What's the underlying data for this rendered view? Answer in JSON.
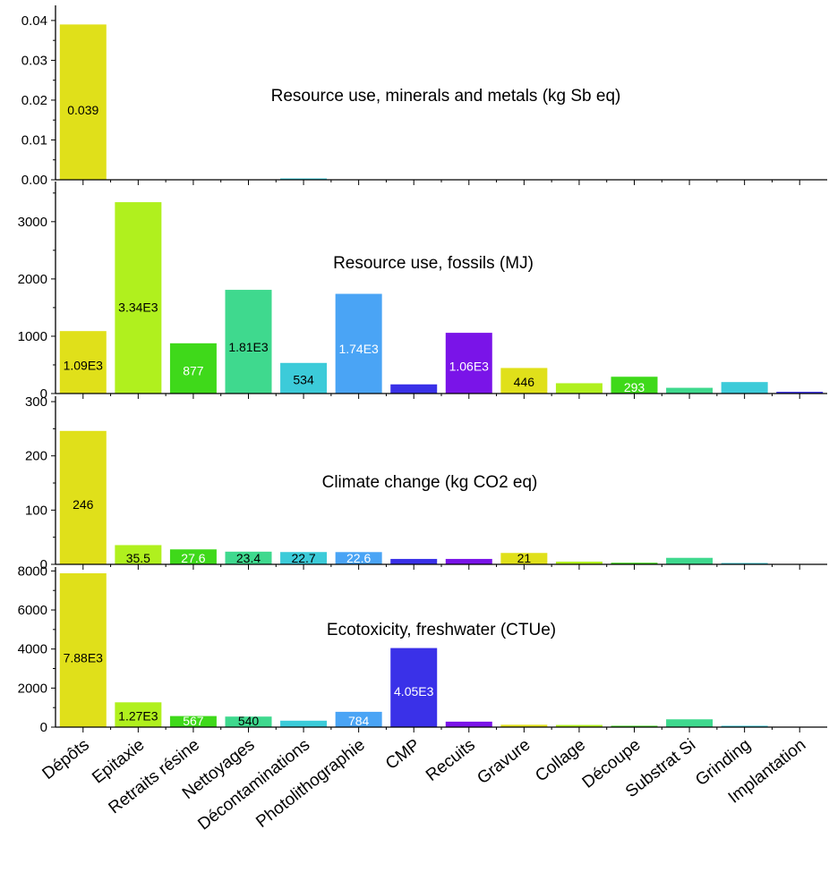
{
  "chart_data": {
    "type": "bar",
    "categories": [
      "Dépôts",
      "Epitaxie",
      "Retraits résine",
      "Nettoyages",
      "Décontaminations",
      "Photolithographie",
      "CMP",
      "Recuits",
      "Gravure",
      "Collage",
      "Découpe",
      "Substrat Si",
      "Grinding",
      "Implantation"
    ],
    "colors": [
      "#e0e01a",
      "#b0f01e",
      "#3fd91a",
      "#3fd98e",
      "#3ccbd9",
      "#4aa4f5",
      "#3a31e8",
      "#7a14e8",
      "#e0e01a",
      "#b0f01e",
      "#3fd91a",
      "#3fd98e",
      "#3ccbd9",
      "#3a31e8"
    ],
    "panels": [
      {
        "title": "Resource use, minerals and metals (kg Sb eq)",
        "ylim": [
          0,
          0.042
        ],
        "yticks": [
          "0.00",
          "0.01",
          "0.02",
          "0.03",
          "0.04"
        ],
        "ytick_values": [
          0,
          0.01,
          0.02,
          0.03,
          0.04
        ],
        "values": [
          0.039,
          0,
          0,
          0,
          0.0003,
          0,
          0,
          0,
          0,
          0,
          0,
          0,
          0,
          0
        ],
        "labels": [
          "0.039",
          "",
          "",
          "",
          "",
          "",
          "",
          "",
          "",
          "",
          "",
          "",
          "",
          ""
        ]
      },
      {
        "title": "Resource use, fossils (MJ)",
        "ylim": [
          0,
          3700
        ],
        "yticks": [
          "0",
          "1000",
          "2000",
          "3000"
        ],
        "ytick_values": [
          0,
          1000,
          2000,
          3000
        ],
        "values": [
          1090,
          3340,
          877,
          1810,
          534,
          1740,
          160,
          1060,
          446,
          180,
          293,
          100,
          200,
          30
        ],
        "labels": [
          "1.09E3",
          "3.34E3",
          "877",
          "1.81E3",
          "534",
          "1.74E3",
          "",
          "1.06E3",
          "446",
          "",
          "293",
          "",
          "",
          ""
        ]
      },
      {
        "title": "Climate change (kg CO2 eq)",
        "ylim": [
          0,
          310
        ],
        "yticks": [
          "0",
          "100",
          "200",
          "300"
        ],
        "ytick_values": [
          0,
          100,
          200,
          300
        ],
        "values": [
          246,
          35.5,
          27.6,
          23.4,
          22.7,
          22.6,
          10,
          10,
          21,
          5,
          3,
          12,
          2,
          0
        ],
        "labels": [
          "246",
          "35.5",
          "27.6",
          "23.4",
          "22.7",
          "22.6",
          "",
          "",
          "21",
          "",
          "",
          "",
          "",
          ""
        ]
      },
      {
        "title": "Ecotoxicity, freshwater (CTUe)",
        "ylim": [
          0,
          8200
        ],
        "yticks": [
          "0",
          "2000",
          "4000",
          "6000",
          "8000"
        ],
        "ytick_values": [
          0,
          2000,
          4000,
          6000,
          8000
        ],
        "values": [
          7880,
          1270,
          567,
          540,
          330,
          784,
          4050,
          280,
          120,
          110,
          60,
          400,
          60,
          0
        ],
        "labels": [
          "7.88E3",
          "1.27E3",
          "567",
          "540",
          "",
          "784",
          "4.05E3",
          "",
          "",
          "",
          "",
          "",
          "",
          ""
        ]
      }
    ]
  }
}
